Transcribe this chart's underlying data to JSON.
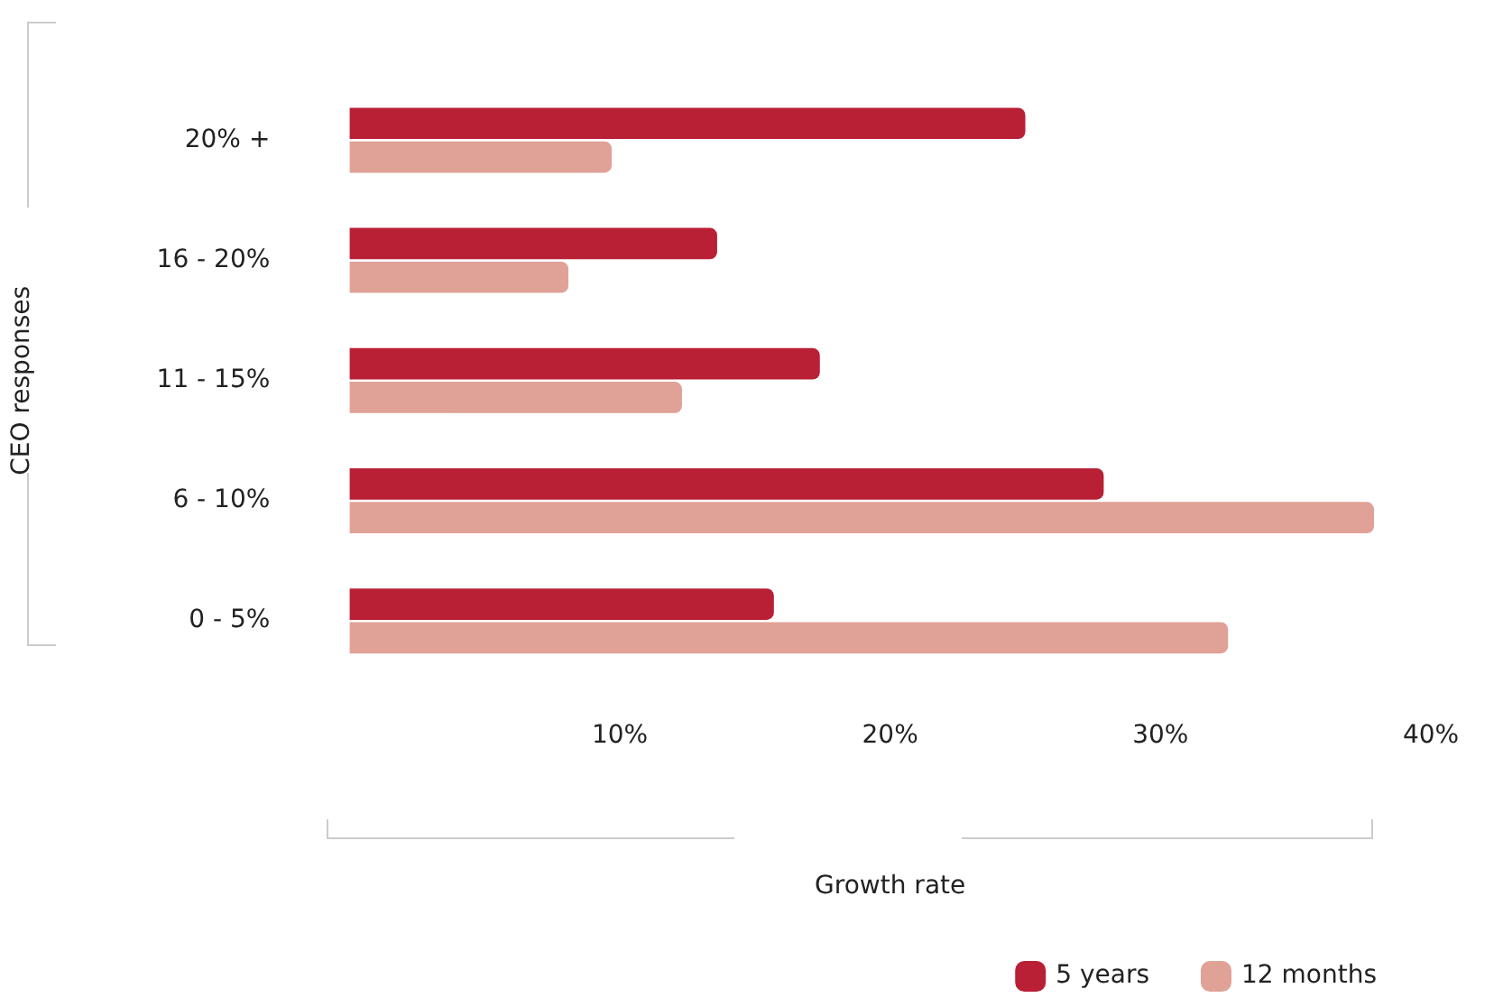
{
  "chart_data": {
    "type": "bar",
    "orientation": "horizontal",
    "xlabel": "Growth rate",
    "ylabel": "CEO responses",
    "categories": [
      "20% +",
      "16 - 20%",
      "11 - 15%",
      "6 - 10%",
      "0 - 5%"
    ],
    "series": [
      {
        "name": "5 years",
        "color": "#b91f35",
        "values": [
          25,
          13.6,
          17.4,
          27.9,
          15.7
        ]
      },
      {
        "name": "12 months",
        "color": "#e0a196",
        "values": [
          9.7,
          8.1,
          12.3,
          37.9,
          32.5
        ]
      }
    ],
    "xlim": [
      0,
      40
    ],
    "xticks": [
      {
        "value": 10,
        "label": "10%"
      },
      {
        "value": 20,
        "label": "20%"
      },
      {
        "value": 30,
        "label": "30%"
      },
      {
        "value": 40,
        "label": "40%"
      }
    ],
    "grid": false,
    "legend": "bottom right"
  }
}
